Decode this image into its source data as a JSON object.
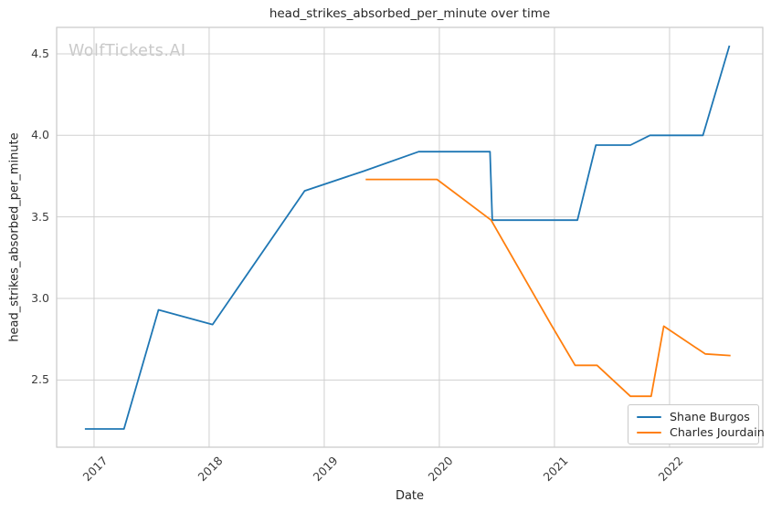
{
  "watermark": {
    "text": "WolfTickets.AI",
    "color": "#c9c9c9"
  },
  "chart_data": {
    "type": "line",
    "title": "head_strikes_absorbed_per_minute over time",
    "xlabel": "Date",
    "ylabel": "head_strikes_absorbed_per_minute",
    "xlim": [
      2016.675,
      2022.81
    ],
    "ylim": [
      2.088,
      4.662
    ],
    "grid": true,
    "x_ticks": {
      "values": [
        2017,
        2018,
        2019,
        2020,
        2021,
        2022
      ],
      "labels": [
        "2017",
        "2018",
        "2019",
        "2020",
        "2021",
        "2022"
      ],
      "rotation": 45
    },
    "y_ticks": {
      "values": [
        2.5,
        3.0,
        3.5,
        4.0,
        4.5
      ],
      "labels": [
        "2.5",
        "3.0",
        "3.5",
        "4.0",
        "4.5"
      ]
    },
    "legend": {
      "position": "lower right",
      "entries": [
        "Shane Burgos",
        "Charles Jourdain"
      ]
    },
    "series": [
      {
        "name": "Shane Burgos",
        "color": "#1f77b4",
        "points": [
          [
            2016.92,
            2.2
          ],
          [
            2017.26,
            2.2
          ],
          [
            2017.56,
            2.93
          ],
          [
            2018.03,
            2.84
          ],
          [
            2018.83,
            3.66
          ],
          [
            2019.34,
            3.78
          ],
          [
            2019.82,
            3.9
          ],
          [
            2020.44,
            3.9
          ],
          [
            2020.46,
            3.48
          ],
          [
            2021.2,
            3.48
          ],
          [
            2021.36,
            3.94
          ],
          [
            2021.66,
            3.94
          ],
          [
            2021.83,
            4.0
          ],
          [
            2022.29,
            4.0
          ],
          [
            2022.52,
            4.55
          ]
        ]
      },
      {
        "name": "Charles Jourdain",
        "color": "#ff7f0e",
        "points": [
          [
            2019.36,
            3.73
          ],
          [
            2019.98,
            3.73
          ],
          [
            2020.45,
            3.48
          ],
          [
            2020.97,
            2.84
          ],
          [
            2021.18,
            2.59
          ],
          [
            2021.37,
            2.59
          ],
          [
            2021.66,
            2.4
          ],
          [
            2021.84,
            2.4
          ],
          [
            2021.95,
            2.83
          ],
          [
            2022.31,
            2.66
          ],
          [
            2022.53,
            2.65
          ]
        ]
      }
    ],
    "style": {
      "background": "#ffffff",
      "grid_color": "#d0d0d0",
      "spine_color": "#c9c9c9",
      "text_color": "#262626",
      "tick_color": "#3b3b3b",
      "line_width": 1.8
    }
  }
}
